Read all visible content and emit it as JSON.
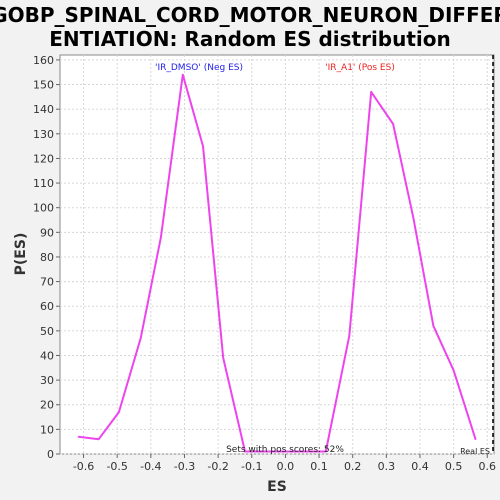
{
  "chart_data": {
    "type": "line",
    "title_lines": [
      "GOBP_SPINAL_CORD_MOTOR_NEURON_DIFFER",
      "ENTIATION: Random ES distribution"
    ],
    "xlabel": "ES",
    "ylabel": "P(ES)",
    "xlim": [
      -0.67,
      0.62
    ],
    "ylim": [
      0,
      162
    ],
    "x_ticks": [
      -0.6,
      -0.5,
      -0.4,
      -0.3,
      -0.2,
      -0.1,
      0.0,
      0.1,
      0.2,
      0.3,
      0.4,
      0.5,
      0.6
    ],
    "x_tick_labels": [
      "-0.6",
      "-0.5",
      "-0.4",
      "-0.3",
      "-0.2",
      "-0.1",
      "0.0",
      "0.1",
      "0.2",
      "0.3",
      "0.4",
      "0.5",
      "0.6"
    ],
    "y_ticks": [
      0,
      10,
      20,
      30,
      40,
      50,
      60,
      70,
      80,
      90,
      100,
      110,
      120,
      130,
      140,
      150,
      160
    ],
    "y_tick_labels": [
      "0",
      "10",
      "20",
      "30",
      "40",
      "50",
      "60",
      "70",
      "80",
      "90",
      "100",
      "110",
      "120",
      "130",
      "140",
      "150",
      "160"
    ],
    "grid": true,
    "series": [
      {
        "color": "#ee44ee",
        "points": [
          [
            -0.615,
            7
          ],
          [
            -0.555,
            6
          ],
          [
            -0.495,
            17
          ],
          [
            -0.43,
            47
          ],
          [
            -0.37,
            88
          ],
          [
            -0.305,
            154
          ],
          [
            -0.245,
            125
          ],
          [
            -0.185,
            39
          ],
          [
            -0.12,
            1
          ],
          [
            0.12,
            1
          ],
          [
            0.19,
            48
          ],
          [
            0.255,
            147
          ],
          [
            0.32,
            134
          ],
          [
            0.38,
            96
          ],
          [
            0.44,
            52
          ],
          [
            0.5,
            34
          ],
          [
            0.565,
            6
          ]
        ]
      }
    ],
    "annotations": {
      "neg_label": "'IR_DMSO' (Neg ES)",
      "neg_color": "#2222ee",
      "pos_label": "'IR_A1' (Pos ES)",
      "pos_color": "#ee2222",
      "pos_score_text": "Sets with pos scores: 52%",
      "real_es_label": "Real ES",
      "real_es_value": 0.617
    }
  }
}
